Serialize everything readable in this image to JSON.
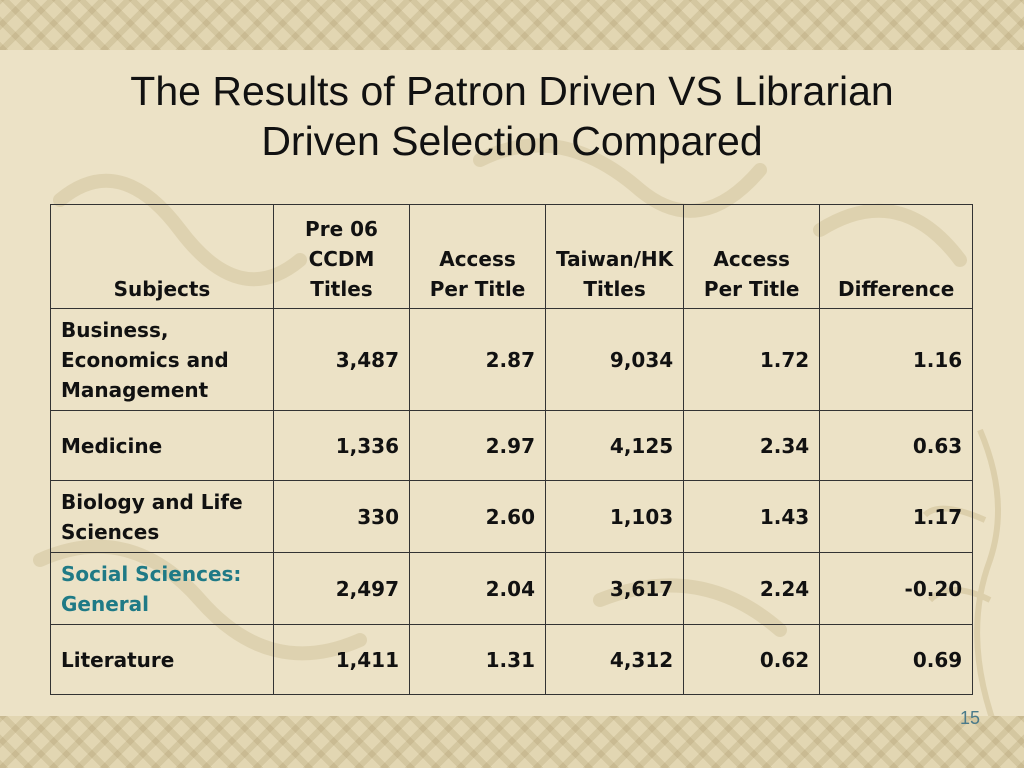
{
  "slide": {
    "title_line1": "The Results of Patron Driven VS Librarian",
    "title_line2": "Driven Selection Compared",
    "page_number": "15"
  },
  "table": {
    "headers": [
      "Subjects",
      "Pre 06 CCDM Titles",
      "Access Per Title",
      "Taiwan/HK Titles",
      "Access Per Title",
      "Difference"
    ],
    "rows": [
      {
        "subject": "Business, Economics and Management",
        "pre06": "3,487",
        "access1": "2.87",
        "taiwan": "9,034",
        "access2": "1.72",
        "diff": "1.16"
      },
      {
        "subject": "Medicine",
        "pre06": "1,336",
        "access1": "2.97",
        "taiwan": "4,125",
        "access2": "2.34",
        "diff": "0.63"
      },
      {
        "subject": "Biology and Life Sciences",
        "pre06": "330",
        "access1": "2.60",
        "taiwan": "1,103",
        "access2": "1.43",
        "diff": "1.17"
      },
      {
        "subject": "Social Sciences: General",
        "pre06": "2,497",
        "access1": "2.04",
        "taiwan": "3,617",
        "access2": "2.24",
        "diff": "-0.20"
      },
      {
        "subject": "Literature",
        "pre06": "1,411",
        "access1": "1.31",
        "taiwan": "4,312",
        "access2": "0.62",
        "diff": "0.69"
      }
    ]
  },
  "colors": {
    "background": "#ece2c6",
    "highlight_subject": "#1f7a86"
  }
}
